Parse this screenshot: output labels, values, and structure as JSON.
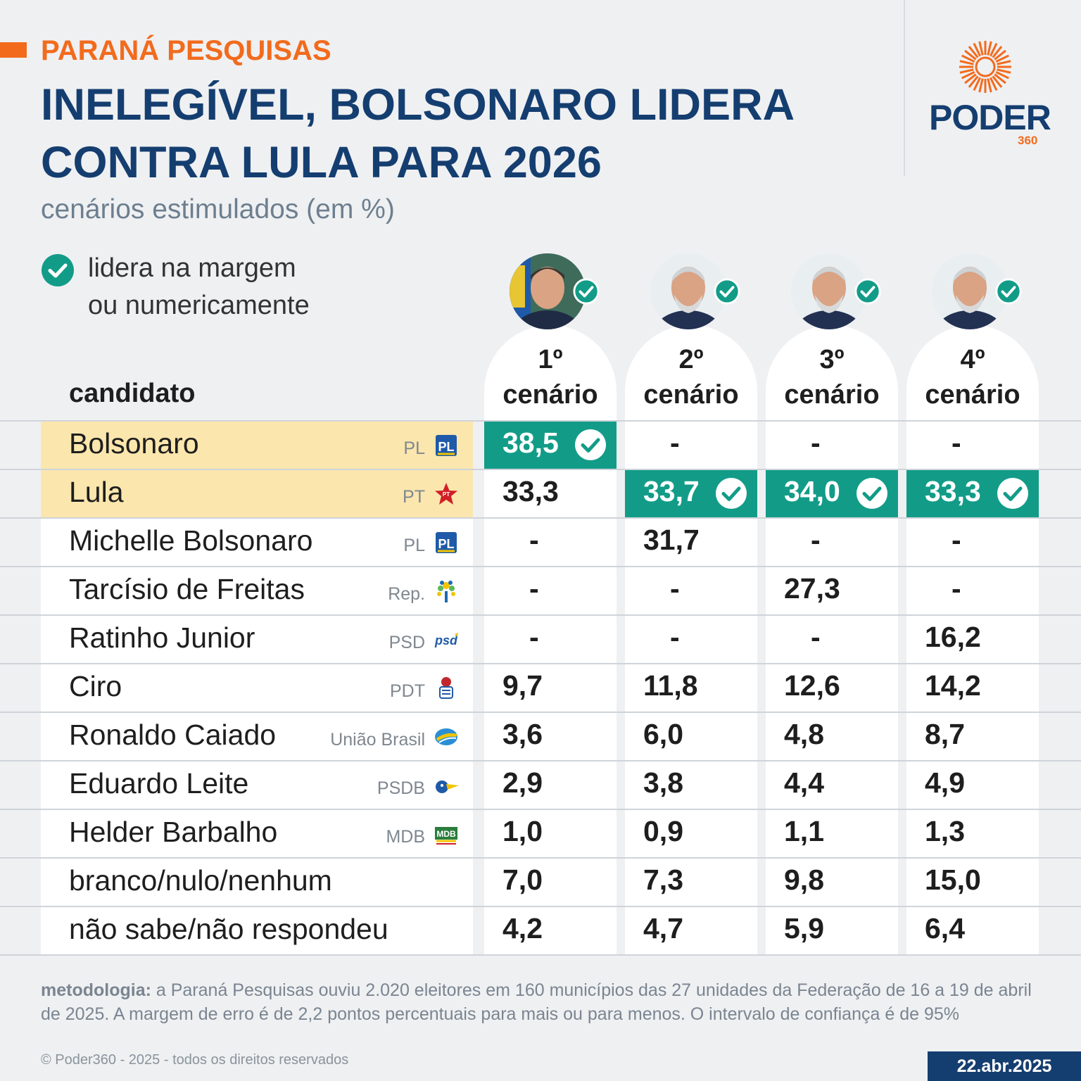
{
  "header": {
    "kicker": "PARANÁ PESQUISAS",
    "title_line1": "INELEGÍVEL, BOLSONARO LIDERA",
    "title_line2": "CONTRA LULA PARA 2026",
    "subtitle": "cenários estimulados (em %)"
  },
  "logo": {
    "word": "PODER",
    "number": "360"
  },
  "legend": {
    "line1": "lidera na margem",
    "line2": "ou numericamente",
    "icon": "check-circle-icon"
  },
  "table": {
    "candidate_header": "candidato",
    "scenarios": [
      {
        "line1": "1º",
        "line2": "cenário",
        "leader": "Bolsonaro"
      },
      {
        "line1": "2º",
        "line2": "cenário",
        "leader": "Lula"
      },
      {
        "line1": "3º",
        "line2": "cenário",
        "leader": "Lula"
      },
      {
        "line1": "4º",
        "line2": "cenário",
        "leader": "Lula"
      }
    ],
    "rows": [
      {
        "name": "Bolsonaro",
        "party": "PL",
        "party_icon": "pl-logo-icon",
        "values": [
          "38,5",
          "-",
          "-",
          "-"
        ],
        "lead": [
          true,
          false,
          false,
          false
        ],
        "highlight": true
      },
      {
        "name": "Lula",
        "party": "PT",
        "party_icon": "pt-star-icon",
        "values": [
          "33,3",
          "33,7",
          "34,0",
          "33,3"
        ],
        "lead": [
          false,
          true,
          true,
          true
        ],
        "highlight": true
      },
      {
        "name": "Michelle Bolsonaro",
        "party": "PL",
        "party_icon": "pl-logo-icon",
        "values": [
          "-",
          "31,7",
          "-",
          "-"
        ],
        "lead": [
          false,
          false,
          false,
          false
        ],
        "highlight": false
      },
      {
        "name": "Tarcísio de Freitas",
        "party": "Rep.",
        "party_icon": "republicanos-tree-icon",
        "values": [
          "-",
          "-",
          "27,3",
          "-"
        ],
        "lead": [
          false,
          false,
          false,
          false
        ],
        "highlight": false
      },
      {
        "name": "Ratinho Junior",
        "party": "PSD",
        "party_icon": "psd-logo-icon",
        "values": [
          "-",
          "-",
          "-",
          "16,2"
        ],
        "lead": [
          false,
          false,
          false,
          false
        ],
        "highlight": false
      },
      {
        "name": "Ciro",
        "party": "PDT",
        "party_icon": "pdt-fist-rose-icon",
        "values": [
          "9,7",
          "11,8",
          "12,6",
          "14,2"
        ],
        "lead": [
          false,
          false,
          false,
          false
        ],
        "highlight": false
      },
      {
        "name": "Ronaldo Caiado",
        "party": "União Brasil",
        "party_icon": "uniao-brasil-logo-icon",
        "values": [
          "3,6",
          "6,0",
          "4,8",
          "8,7"
        ],
        "lead": [
          false,
          false,
          false,
          false
        ],
        "highlight": false
      },
      {
        "name": "Eduardo Leite",
        "party": "PSDB",
        "party_icon": "psdb-toucan-icon",
        "values": [
          "2,9",
          "3,8",
          "4,4",
          "4,9"
        ],
        "lead": [
          false,
          false,
          false,
          false
        ],
        "highlight": false
      },
      {
        "name": "Helder Barbalho",
        "party": "MDB",
        "party_icon": "mdb-logo-icon",
        "values": [
          "1,0",
          "0,9",
          "1,1",
          "1,3"
        ],
        "lead": [
          false,
          false,
          false,
          false
        ],
        "highlight": false
      },
      {
        "name": "branco/nulo/nenhum",
        "party": "",
        "party_icon": "",
        "values": [
          "7,0",
          "7,3",
          "9,8",
          "15,0"
        ],
        "lead": [
          false,
          false,
          false,
          false
        ],
        "highlight": false
      },
      {
        "name": "não sabe/não respondeu",
        "party": "",
        "party_icon": "",
        "values": [
          "4,2",
          "4,7",
          "5,9",
          "6,4"
        ],
        "lead": [
          false,
          false,
          false,
          false
        ],
        "highlight": false
      }
    ]
  },
  "chart_data": {
    "type": "table",
    "title": "INELEGÍVEL, BOLSONARO LIDERA CONTRA LULA PARA 2026",
    "subtitle": "cenários estimulados (em %)",
    "columns": [
      "1º cenário",
      "2º cenário",
      "3º cenário",
      "4º cenário"
    ],
    "series": [
      {
        "name": "Bolsonaro",
        "values": [
          38.5,
          null,
          null,
          null
        ]
      },
      {
        "name": "Lula",
        "values": [
          33.3,
          33.7,
          34.0,
          33.3
        ]
      },
      {
        "name": "Michelle Bolsonaro",
        "values": [
          null,
          31.7,
          null,
          null
        ]
      },
      {
        "name": "Tarcísio de Freitas",
        "values": [
          null,
          null,
          27.3,
          null
        ]
      },
      {
        "name": "Ratinho Junior",
        "values": [
          null,
          null,
          null,
          16.2
        ]
      },
      {
        "name": "Ciro",
        "values": [
          9.7,
          11.8,
          12.6,
          14.2
        ]
      },
      {
        "name": "Ronaldo Caiado",
        "values": [
          3.6,
          6.0,
          4.8,
          8.7
        ]
      },
      {
        "name": "Eduardo Leite",
        "values": [
          2.9,
          3.8,
          4.4,
          4.9
        ]
      },
      {
        "name": "Helder Barbalho",
        "values": [
          1.0,
          0.9,
          1.1,
          1.3
        ]
      },
      {
        "name": "branco/nulo/nenhum",
        "values": [
          7.0,
          7.3,
          9.8,
          15.0
        ]
      },
      {
        "name": "não sabe/não respondeu",
        "values": [
          4.2,
          4.7,
          5.9,
          6.4
        ]
      }
    ]
  },
  "footer": {
    "method_label": "metodologia:",
    "method_text": " a Paraná Pesquisas ouviu 2.020 eleitores em 160 municípios das 27 unidades da Federação de 16 a 19 de abril de 2025. A margem de erro é de 2,2 pontos percentuais para mais ou para menos. O intervalo de confiança é de 95%",
    "copyright": "© Poder360 - 2025 - todos os direitos reservados",
    "date": "22.abr.2025"
  },
  "colors": {
    "brand_blue": "#153e70",
    "brand_orange": "#f26b1d",
    "lead_green": "#129c88",
    "highlight_yellow": "#fbe6ad"
  }
}
